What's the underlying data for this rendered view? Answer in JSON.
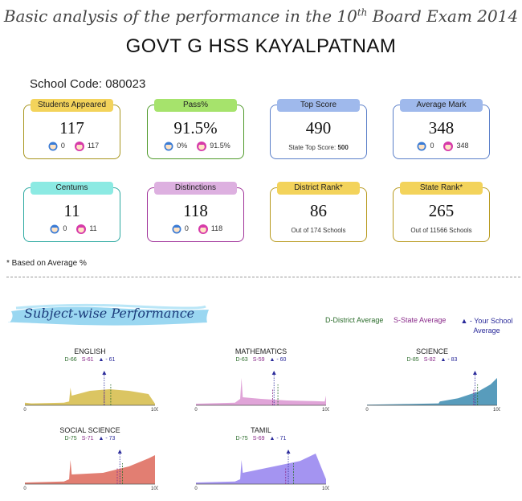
{
  "header": {
    "title_pre": "Basic analysis of the performance in the 10",
    "title_sup": "th",
    "title_post": " Board Exam 2014",
    "school_name": "GOVT G HSS KAYALPATNAM",
    "school_code": "School Code: 080023"
  },
  "cards": {
    "students_appeared": {
      "label": "Students Appeared",
      "value": "117",
      "boys": "0",
      "girls": "117",
      "color": "#f3d35b"
    },
    "pass_percent": {
      "label": "Pass%",
      "value": "91.5%",
      "boys": "0%",
      "girls": "91.5%",
      "color": "#a6e36c"
    },
    "top_score": {
      "label": "Top Score",
      "value": "490",
      "sub_label": "State Top Score:",
      "sub_value": "500",
      "color": "#9fb9ec"
    },
    "average_mark": {
      "label": "Average Mark",
      "value": "348",
      "boys": "0",
      "girls": "348",
      "color": "#9fb9ec"
    },
    "centums": {
      "label": "Centums",
      "value": "11",
      "boys": "0",
      "girls": "11",
      "color": "#8ceae3"
    },
    "distinctions": {
      "label": "Distinctions",
      "value": "118",
      "boys": "0",
      "girls": "118",
      "color": "#ddb0e0"
    },
    "district_rank": {
      "label": "District Rank*",
      "value": "86",
      "sub": "Out of 174 Schools",
      "color": "#f3d35b"
    },
    "state_rank": {
      "label": "State Rank*",
      "value": "265",
      "sub": "Out of 11566 Schools",
      "color": "#f3d35b"
    }
  },
  "note": "* Based on Average %",
  "subject_section": {
    "title": "Subject-wise Performance",
    "legend_district": "D-District Average",
    "legend_state": "S-State Average",
    "legend_school": "▲ - Your School Average"
  },
  "subjects": [
    {
      "name": "ENGLISH",
      "d": "D-66",
      "s": "S-61",
      "y": "▲ - 61",
      "color": "#d9c25a",
      "d_val": 66,
      "s_val": 61,
      "y_val": 61
    },
    {
      "name": "MATHEMATICS",
      "d": "D-63",
      "s": "S-59",
      "y": "▲ - 60",
      "color": "#de9fd6",
      "d_val": 63,
      "s_val": 59,
      "y_val": 60
    },
    {
      "name": "SCIENCE",
      "d": "D-85",
      "s": "S-82",
      "y": "▲ - 83",
      "color": "#4f97b8",
      "d_val": 85,
      "s_val": 82,
      "y_val": 83
    },
    {
      "name": "SOCIAL SCIENCE",
      "d": "D-75",
      "s": "S-71",
      "y": "▲ - 73",
      "color": "#e0776a",
      "d_val": 75,
      "s_val": 71,
      "y_val": 73
    },
    {
      "name": "TAMIL",
      "d": "D-75",
      "s": "S-69",
      "y": "▲ - 71",
      "color": "#9f8ef0",
      "d_val": 75,
      "s_val": 69,
      "y_val": 71
    }
  ],
  "axis": {
    "min": "0",
    "max": "100"
  },
  "colors": {
    "boy": "#3a7bd5",
    "girl": "#d63aa9",
    "district": "#2e6e2e",
    "state": "#8a2b8a",
    "school": "#2a2a9a",
    "banner": "#8fd3f0"
  }
}
